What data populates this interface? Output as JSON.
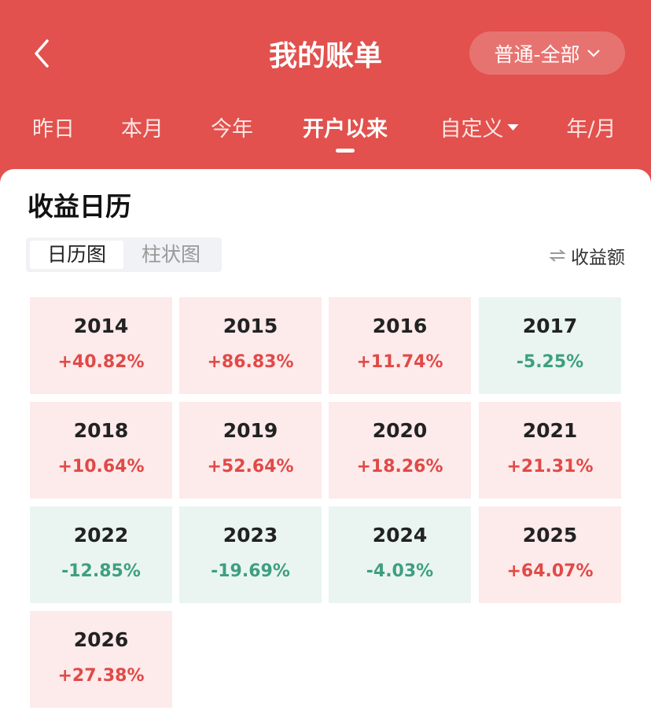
{
  "header": {
    "title": "我的账单",
    "account": "普通-全部",
    "tabs": [
      "昨日",
      "本月",
      "今年",
      "开户以来",
      "自定义",
      "年/月"
    ],
    "active_tab": 3
  },
  "section": {
    "title": "收益日历",
    "view_options": [
      "日历图",
      "柱状图"
    ],
    "active_view": 0,
    "metric": "收益额"
  },
  "calendar": [
    {
      "year": "2014",
      "value": "+40.82%"
    },
    {
      "year": "2015",
      "value": "+86.83%"
    },
    {
      "year": "2016",
      "value": "+11.74%"
    },
    {
      "year": "2017",
      "value": "-5.25%"
    },
    {
      "year": "2018",
      "value": "+10.64%"
    },
    {
      "year": "2019",
      "value": "+52.64%"
    },
    {
      "year": "2020",
      "value": "+18.26%"
    },
    {
      "year": "2021",
      "value": "+21.31%"
    },
    {
      "year": "2022",
      "value": "-12.85%"
    },
    {
      "year": "2023",
      "value": "-19.69%"
    },
    {
      "year": "2024",
      "value": "-4.03%"
    },
    {
      "year": "2025",
      "value": "+64.07%"
    },
    {
      "year": "2026",
      "value": "+27.38%"
    }
  ]
}
